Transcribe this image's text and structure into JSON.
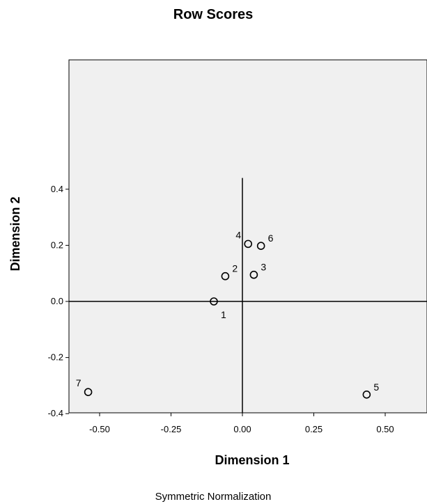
{
  "chart_data": {
    "type": "scatter",
    "title": "Row Scores",
    "xlabel": "Dimension 1",
    "ylabel": "Dimension 2",
    "footnote": "Symmetric Normalization",
    "xlim": [
      -0.6,
      0.65
    ],
    "ylim": [
      -0.4,
      0.8
    ],
    "xticks": [
      -0.5,
      -0.25,
      0.0,
      0.25,
      0.5
    ],
    "xtick_labels": [
      "-0.50",
      "-0.25",
      "0.00",
      "0.25",
      "0.50"
    ],
    "yticks": [
      -0.4,
      -0.2,
      0.0,
      0.2,
      0.4
    ],
    "ytick_labels": [
      "-0.4",
      "-0.2",
      "0.0",
      "0.2",
      "0.4"
    ],
    "grid": false,
    "plot_background": "#f0f0f0",
    "marker": "open-circle",
    "points": [
      {
        "label": "1",
        "x": -0.1,
        "y": 0.0,
        "label_pos": "below-right"
      },
      {
        "label": "2",
        "x": -0.06,
        "y": 0.09,
        "label_pos": "upper-right"
      },
      {
        "label": "3",
        "x": 0.04,
        "y": 0.095,
        "label_pos": "upper-right"
      },
      {
        "label": "4",
        "x": 0.02,
        "y": 0.205,
        "label_pos": "upper-left"
      },
      {
        "label": "5",
        "x": 0.435,
        "y": -0.332,
        "label_pos": "upper-right"
      },
      {
        "label": "6",
        "x": 0.065,
        "y": 0.198,
        "label_pos": "upper-right"
      },
      {
        "label": "7",
        "x": -0.54,
        "y": -0.323,
        "label_pos": "upper-left"
      }
    ]
  }
}
